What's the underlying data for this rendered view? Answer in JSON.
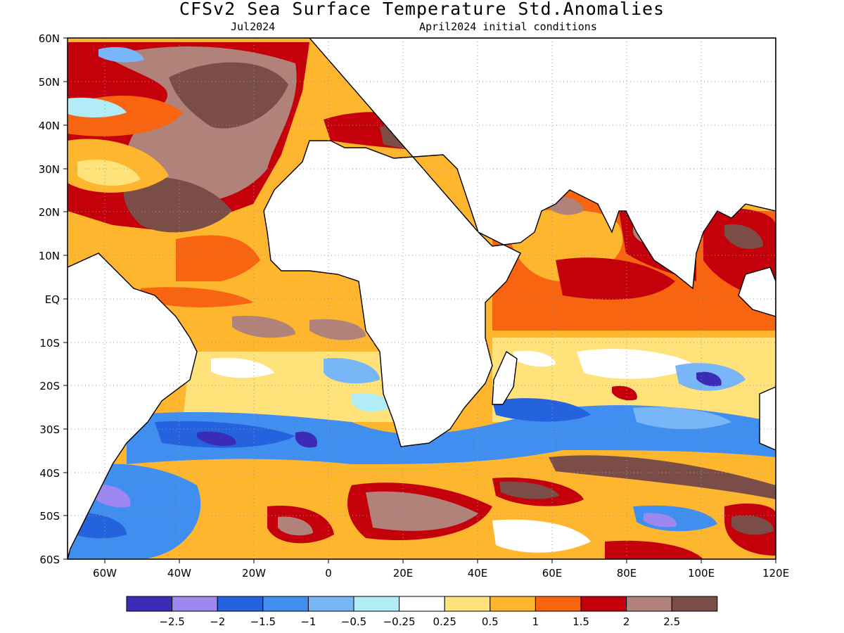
{
  "header": {
    "title": "CFSv2 Sea Surface Temperature Std.Anomalies",
    "valid_month": "Jul2024",
    "initial_conditions": "April2024 initial conditions"
  },
  "map": {
    "lat_labels": [
      "60N",
      "50N",
      "40N",
      "30N",
      "20N",
      "10N",
      "EQ",
      "10S",
      "20S",
      "30S",
      "40S",
      "50S",
      "60S"
    ],
    "lon_labels": [
      "60W",
      "40W",
      "20W",
      "0",
      "20E",
      "40E",
      "60E",
      "80E",
      "100E",
      "120E"
    ],
    "lat_range": [
      -60,
      60
    ],
    "lon_range": [
      -70,
      120
    ],
    "grid": "dotted",
    "land_color": "#ffffff"
  },
  "colorbar": {
    "colors": [
      "#3a2cb8",
      "#9d87f0",
      "#2563de",
      "#3f8ef0",
      "#78b6f7",
      "#b2edf7",
      "#ffffff",
      "#ffe27a",
      "#fdb62e",
      "#f86410",
      "#c4000a",
      "#b0827a",
      "#7a4e46"
    ],
    "labels": [
      "−2.5",
      "−2",
      "−1.5",
      "−1",
      "−0.5",
      "−0.25",
      "0.25",
      "0.5",
      "1",
      "1.5",
      "2",
      "2.5"
    ]
  }
}
